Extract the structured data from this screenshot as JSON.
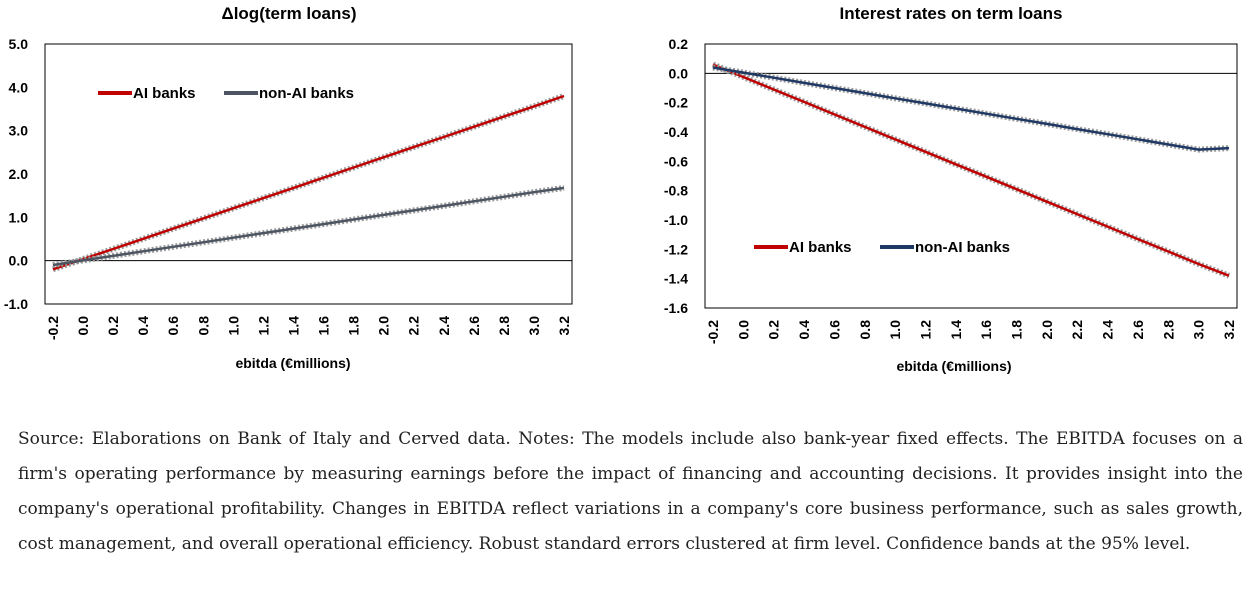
{
  "chart_data": [
    {
      "type": "line",
      "title": "Δlog(term loans)",
      "xlabel": "ebitda (€millions)",
      "ylabel": "",
      "x": [
        -0.2,
        0.0,
        0.2,
        0.4,
        0.6,
        0.8,
        1.0,
        1.2,
        1.4,
        1.6,
        1.8,
        2.0,
        2.2,
        2.4,
        2.6,
        2.8,
        3.0,
        3.2
      ],
      "x_tick_labels": [
        "-0.2",
        "0.0",
        "0.2",
        "0.4",
        "0.6",
        "0.8",
        "1.0",
        "1.2",
        "1.4",
        "1.6",
        "1.8",
        "2.0",
        "2.2",
        "2.4",
        "2.6",
        "2.8",
        "3.0",
        "3.2"
      ],
      "xlim": [
        -0.2,
        3.2
      ],
      "ylim": [
        -1.0,
        5.0
      ],
      "y_ticks": [
        -1.0,
        0.0,
        1.0,
        2.0,
        3.0,
        4.0,
        5.0
      ],
      "y_tick_labels": [
        "-1.0",
        "0.0",
        "1.0",
        "2.0",
        "3.0",
        "4.0",
        "5.0"
      ],
      "zero_line": true,
      "grid": false,
      "legend_placement": "top-left",
      "series": [
        {
          "name": "AI banks",
          "color": "#c00000",
          "values": [
            -0.2,
            0.035,
            0.27,
            0.505,
            0.74,
            0.975,
            1.21,
            1.445,
            1.68,
            1.915,
            2.15,
            2.385,
            2.62,
            2.855,
            3.09,
            3.325,
            3.56,
            3.8
          ]
        },
        {
          "name": "non-AI banks",
          "color": "#4d5563",
          "values": [
            -0.1,
            0.005,
            0.11,
            0.215,
            0.32,
            0.425,
            0.53,
            0.635,
            0.74,
            0.845,
            0.95,
            1.055,
            1.16,
            1.265,
            1.37,
            1.475,
            1.58,
            1.68
          ]
        }
      ]
    },
    {
      "type": "line",
      "title": "Interest rates on term loans",
      "xlabel": "ebitda (€millions)",
      "ylabel": "",
      "x": [
        -0.2,
        0.0,
        0.2,
        0.4,
        0.6,
        0.8,
        1.0,
        1.2,
        1.4,
        1.6,
        1.8,
        2.0,
        2.2,
        2.4,
        2.6,
        2.8,
        3.0,
        3.2
      ],
      "x_tick_labels": [
        "-0.2",
        "0.0",
        "0.2",
        "0.4",
        "0.6",
        "0.8",
        "1.0",
        "1.2",
        "1.4",
        "1.6",
        "1.8",
        "2.0",
        "2.2",
        "2.4",
        "2.6",
        "2.8",
        "3.0",
        "3.2"
      ],
      "xlim": [
        -0.2,
        3.2
      ],
      "ylim": [
        -1.6,
        0.2
      ],
      "y_ticks": [
        -1.6,
        -1.4,
        -1.2,
        -1.0,
        -0.8,
        -0.6,
        -0.4,
        -0.2,
        0.0,
        0.2
      ],
      "y_tick_labels": [
        "-1.6",
        "-1.4",
        "-1.2",
        "-1.0",
        "-0.8",
        "-0.6",
        "-0.4",
        "-0.2",
        "0.0",
        "0.2"
      ],
      "zero_line": true,
      "grid": false,
      "legend_placement": "bottom-left",
      "series": [
        {
          "name": "AI banks",
          "color": "#c00000",
          "values": [
            0.06,
            -0.025,
            -0.11,
            -0.195,
            -0.28,
            -0.365,
            -0.45,
            -0.535,
            -0.62,
            -0.705,
            -0.79,
            -0.875,
            -0.96,
            -1.045,
            -1.13,
            -1.215,
            -1.3,
            -1.38
          ]
        },
        {
          "name": "non-AI banks",
          "color": "#1f3864",
          "values": [
            0.04,
            0.005,
            -0.03,
            -0.065,
            -0.1,
            -0.135,
            -0.17,
            -0.205,
            -0.24,
            -0.275,
            -0.31,
            -0.345,
            -0.38,
            -0.415,
            -0.45,
            -0.485,
            -0.52,
            -0.51
          ]
        }
      ]
    }
  ],
  "caption": "Source: Elaborations on Bank of Italy and Cerved data. Notes: The models include also bank-year fixed effects. The EBITDA focuses on a firm's operating performance by measuring earnings before the impact of financing and accounting decisions. It provides insight into the company's operational profitability. Changes in EBITDA reflect variations in a company's core business performance, such as sales growth, cost management, and overall operational efficiency. Robust standard errors clustered at firm level. Confidence bands at the 95% level."
}
